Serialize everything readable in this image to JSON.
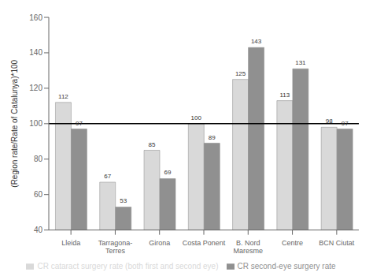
{
  "chart_data": {
    "type": "bar",
    "categories": [
      "Lleida",
      "Tarragona-\nTerres",
      "Girona",
      "Costa Ponent",
      "B. Nord\nMaresme",
      "Centre",
      "BCN Ciutat"
    ],
    "series": [
      {
        "name": "CR cataract surgery rate (both first and second eye)",
        "color": "#d9d9d9",
        "values": [
          112,
          67,
          85,
          100,
          125,
          113,
          98
        ]
      },
      {
        "name": "CR second-eye surgery rate",
        "color": "#909090",
        "values": [
          97,
          53,
          69,
          89,
          143,
          131,
          97
        ]
      }
    ],
    "ylabel": "(Region rate/Rate of Catalunya)*100",
    "ylim": [
      40,
      160
    ],
    "yticks": [
      40,
      60,
      80,
      100,
      120,
      140,
      160
    ],
    "hline": 100,
    "data_labels": true,
    "legend": "bottom",
    "grid": false
  }
}
